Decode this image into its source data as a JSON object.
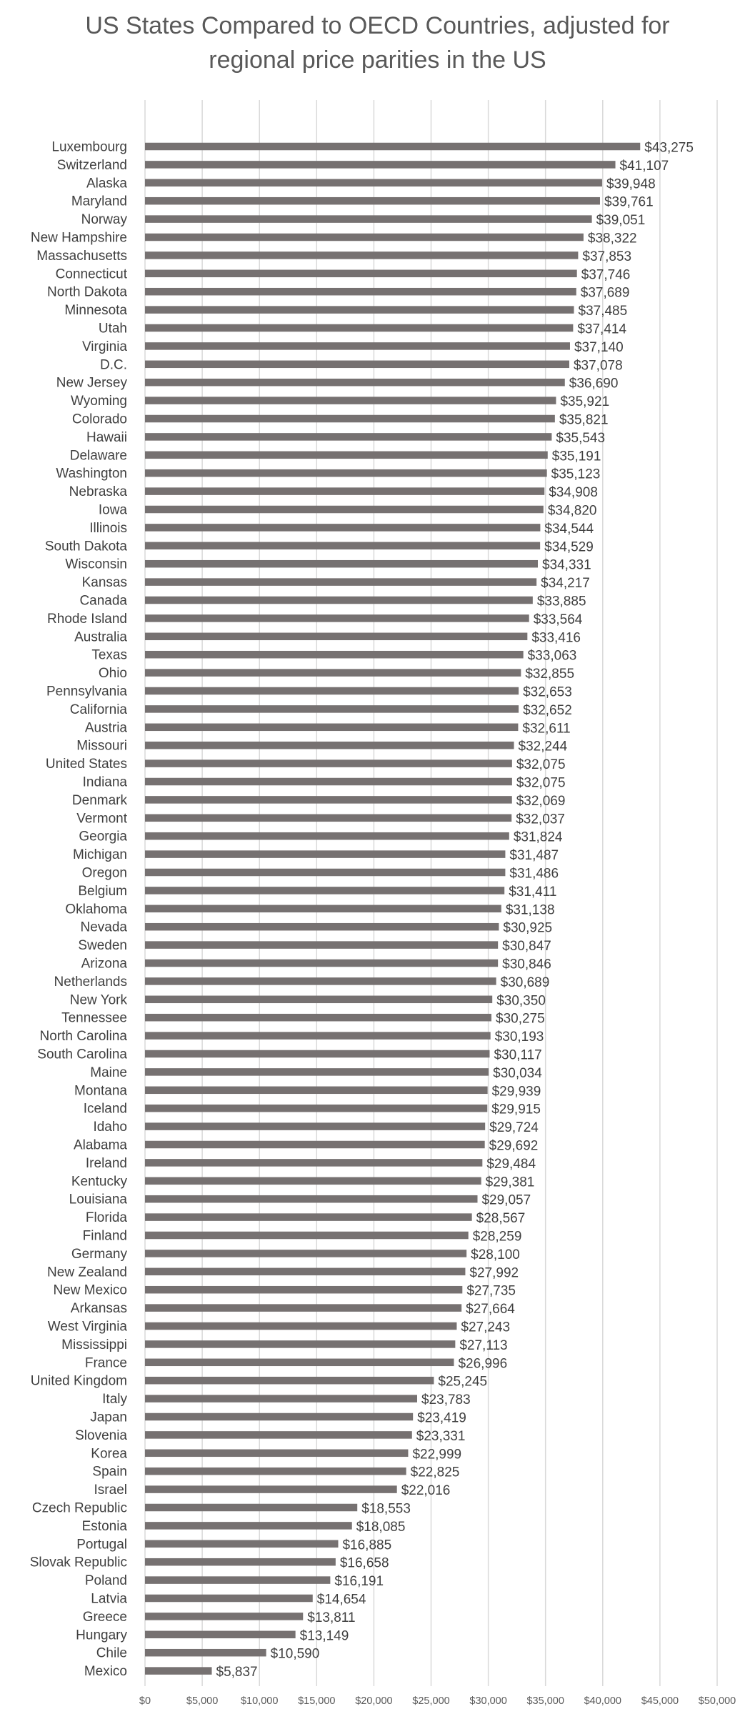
{
  "chart_data": {
    "type": "bar",
    "orientation": "horizontal",
    "title_line1": "US States Compared to OECD Countries, adjusted for",
    "title_line2": "regional price parities in the US",
    "xlabel": "",
    "ylabel": "",
    "xlim": [
      0,
      50000
    ],
    "x_ticks": [
      0,
      5000,
      10000,
      15000,
      20000,
      25000,
      30000,
      35000,
      40000,
      45000,
      50000
    ],
    "x_tick_labels": [
      "$0",
      "$5,000",
      "$10,000",
      "$15,000",
      "$20,000",
      "$25,000",
      "$30,000",
      "$35,000",
      "$40,000",
      "$45,000",
      "$50,000"
    ],
    "grid": true,
    "legend": "none",
    "bar_color": "#767171",
    "categories": [
      "Luxembourg",
      "Switzerland",
      "Alaska",
      "Maryland",
      "Norway",
      "New Hampshire",
      "Massachusetts",
      "Connecticut",
      "North Dakota",
      "Minnesota",
      "Utah",
      "Virginia",
      "D.C.",
      "New Jersey",
      "Wyoming",
      "Colorado",
      "Hawaii",
      "Delaware",
      "Washington",
      "Nebraska",
      "Iowa",
      "Illinois",
      "South Dakota",
      "Wisconsin",
      "Kansas",
      "Canada",
      "Rhode Island",
      "Australia",
      "Texas",
      "Ohio",
      "Pennsylvania",
      "California",
      "Austria",
      "Missouri",
      "United States",
      "Indiana",
      "Denmark",
      "Vermont",
      "Georgia",
      "Michigan",
      "Oregon",
      "Belgium",
      "Oklahoma",
      "Nevada",
      "Sweden",
      "Arizona",
      "Netherlands",
      "New York",
      "Tennessee",
      "North Carolina",
      "South Carolina",
      "Maine",
      "Montana",
      "Iceland",
      "Idaho",
      "Alabama",
      "Ireland",
      "Kentucky",
      "Louisiana",
      "Florida",
      "Finland",
      "Germany",
      "New Zealand",
      "New Mexico",
      "Arkansas",
      "West Virginia",
      "Mississippi",
      "France",
      "United Kingdom",
      "Italy",
      "Japan",
      "Slovenia",
      "Korea",
      "Spain",
      "Israel",
      "Czech Republic",
      "Estonia",
      "Portugal",
      "Slovak Republic",
      "Poland",
      "Latvia",
      "Greece",
      "Hungary",
      "Chile",
      "Mexico"
    ],
    "values": [
      43275,
      41107,
      39948,
      39761,
      39051,
      38322,
      37853,
      37746,
      37689,
      37485,
      37414,
      37140,
      37078,
      36690,
      35921,
      35821,
      35543,
      35191,
      35123,
      34908,
      34820,
      34544,
      34529,
      34331,
      34217,
      33885,
      33564,
      33416,
      33063,
      32855,
      32653,
      32652,
      32611,
      32244,
      32075,
      32075,
      32069,
      32037,
      31824,
      31487,
      31486,
      31411,
      31138,
      30925,
      30847,
      30846,
      30689,
      30350,
      30275,
      30193,
      30117,
      30034,
      29939,
      29915,
      29724,
      29692,
      29484,
      29381,
      29057,
      28567,
      28259,
      28100,
      27992,
      27735,
      27664,
      27243,
      27113,
      26996,
      25245,
      23783,
      23419,
      23331,
      22999,
      22825,
      22016,
      18553,
      18085,
      16885,
      16658,
      16191,
      14654,
      13811,
      13149,
      10590,
      5837
    ],
    "data_labels": [
      "$43,275",
      "$41,107",
      "$39,948",
      "$39,761",
      "$39,051",
      "$38,322",
      "$37,853",
      "$37,746",
      "$37,689",
      "$37,485",
      "$37,414",
      "$37,140",
      "$37,078",
      "$36,690",
      "$35,921",
      "$35,821",
      "$35,543",
      "$35,191",
      "$35,123",
      "$34,908",
      "$34,820",
      "$34,544",
      "$34,529",
      "$34,331",
      "$34,217",
      "$33,885",
      "$33,564",
      "$33,416",
      "$33,063",
      "$32,855",
      "$32,653",
      "$32,652",
      "$32,611",
      "$32,244",
      "$32,075",
      "$32,075",
      "$32,069",
      "$32,037",
      "$31,824",
      "$31,487",
      "$31,486",
      "$31,411",
      "$31,138",
      "$30,925",
      "$30,847",
      "$30,846",
      "$30,689",
      "$30,350",
      "$30,275",
      "$30,193",
      "$30,117",
      "$30,034",
      "$29,939",
      "$29,915",
      "$29,724",
      "$29,692",
      "$29,484",
      "$29,381",
      "$29,057",
      "$28,567",
      "$28,259",
      "$28,100",
      "$27,992",
      "$27,735",
      "$27,664",
      "$27,243",
      "$27,113",
      "$26,996",
      "$25,245",
      "$23,783",
      "$23,419",
      "$23,331",
      "$22,999",
      "$22,825",
      "$22,016",
      "$18,553",
      "$18,085",
      "$16,885",
      "$16,658",
      "$16,191",
      "$14,654",
      "$13,811",
      "$13,149",
      "$10,590",
      "$5,837"
    ]
  }
}
